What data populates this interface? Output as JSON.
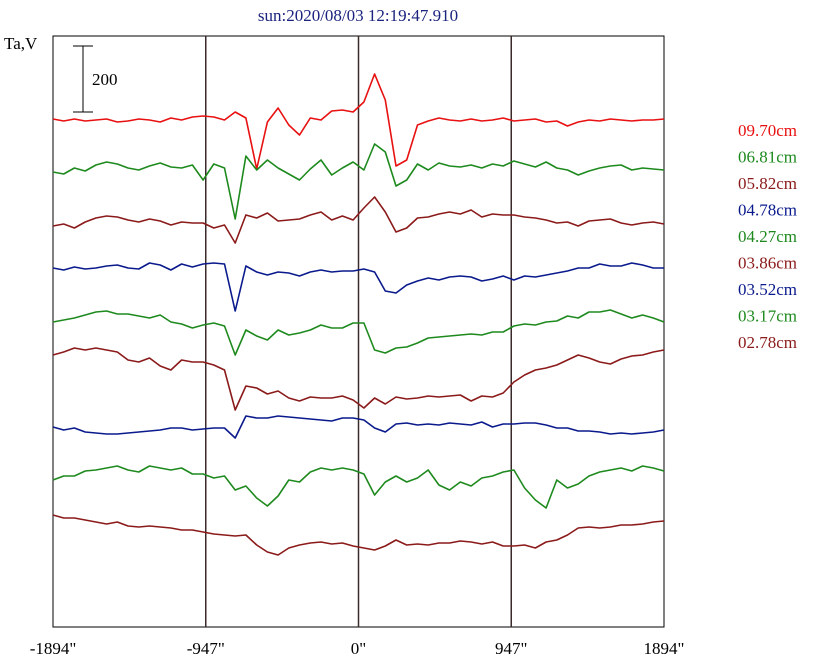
{
  "title": "sun:2020/08/03 12:19:47.910",
  "chart_data": {
    "type": "line",
    "title": "sun:2020/08/03 12:19:47.910",
    "ylabel": "Ta,V",
    "scale_bar": {
      "label": "200",
      "value": 200
    },
    "x_ticks": [
      {
        "label": "-1894\"",
        "value": -1894
      },
      {
        "label": "-947\"",
        "value": -947
      },
      {
        "label": "0\"",
        "value": 0
      },
      {
        "label": "947\"",
        "value": 947
      },
      {
        "label": "1894\"",
        "value": 1894
      }
    ],
    "xlim": [
      -1894,
      1894
    ],
    "vertical_lines_at": [
      -947,
      0,
      947
    ],
    "legend_position": "right",
    "series": [
      {
        "name": "09.70cm",
        "color": "#e81010",
        "y": [
          119,
          121,
          119,
          121,
          120,
          119,
          122,
          121,
          119,
          120,
          122,
          118,
          120,
          117,
          116,
          117,
          120,
          112,
          118,
          169,
          122,
          108,
          125,
          135,
          118,
          120,
          111,
          110,
          112,
          102,
          74,
          100,
          166,
          160,
          125,
          121,
          118,
          120,
          121,
          119,
          121,
          120,
          118,
          121,
          120,
          119,
          122,
          121,
          126,
          122,
          120,
          121,
          119,
          120,
          121,
          120,
          120,
          119
        ]
      },
      {
        "name": "06.81cm",
        "color": "#1e8a1e",
        "y": [
          172,
          174,
          168,
          171,
          165,
          162,
          164,
          168,
          170,
          166,
          163,
          167,
          168,
          165,
          180,
          164,
          168,
          219,
          156,
          170,
          160,
          168,
          174,
          180,
          169,
          160,
          175,
          168,
          162,
          170,
          144,
          152,
          186,
          180,
          164,
          170,
          163,
          166,
          167,
          165,
          168,
          164,
          166,
          161,
          164,
          167,
          162,
          168,
          170,
          175,
          171,
          168,
          166,
          165,
          170,
          168,
          169,
          170
        ]
      },
      {
        "name": "05.82cm",
        "color": "#8b1a1a",
        "y": [
          226,
          224,
          228,
          222,
          218,
          216,
          217,
          220,
          222,
          219,
          221,
          225,
          222,
          223,
          223,
          228,
          225,
          243,
          215,
          218,
          213,
          221,
          220,
          219,
          215,
          212,
          220,
          216,
          220,
          208,
          197,
          212,
          232,
          228,
          218,
          217,
          214,
          212,
          214,
          210,
          217,
          214,
          215,
          215,
          217,
          218,
          220,
          223,
          222,
          226,
          221,
          220,
          219,
          223,
          225,
          223,
          222,
          224
        ]
      },
      {
        "name": "04.78cm",
        "color": "#0a1a8c",
        "y": [
          268,
          270,
          267,
          269,
          268,
          266,
          265,
          268,
          269,
          263,
          265,
          270,
          264,
          267,
          264,
          263,
          264,
          311,
          266,
          272,
          275,
          272,
          273,
          276,
          272,
          270,
          272,
          271,
          271,
          269,
          272,
          291,
          293,
          285,
          281,
          278,
          280,
          277,
          276,
          277,
          281,
          279,
          276,
          280,
          276,
          277,
          275,
          273,
          271,
          268,
          268,
          264,
          266,
          266,
          263,
          265,
          268,
          268
        ]
      },
      {
        "name": "04.27cm",
        "color": "#1e8a1e",
        "y": [
          322,
          320,
          318,
          315,
          312,
          311,
          314,
          314,
          316,
          318,
          315,
          322,
          324,
          328,
          325,
          323,
          326,
          355,
          330,
          336,
          340,
          330,
          335,
          333,
          330,
          325,
          328,
          328,
          323,
          323,
          350,
          353,
          348,
          347,
          343,
          338,
          337,
          336,
          335,
          334,
          335,
          332,
          332,
          326,
          324,
          325,
          322,
          321,
          316,
          318,
          312,
          312,
          310,
          314,
          318,
          315,
          318,
          322
        ]
      },
      {
        "name": "03.86cm",
        "color": "#8b1a1a",
        "y": [
          355,
          352,
          348,
          350,
          348,
          350,
          352,
          360,
          362,
          358,
          366,
          370,
          360,
          362,
          362,
          365,
          370,
          410,
          386,
          388,
          394,
          391,
          398,
          401,
          397,
          398,
          398,
          396,
          400,
          408,
          398,
          404,
          397,
          399,
          398,
          396,
          397,
          396,
          395,
          401,
          396,
          397,
          393,
          382,
          375,
          370,
          368,
          365,
          360,
          355,
          358,
          362,
          364,
          359,
          356,
          355,
          352,
          350
        ]
      },
      {
        "name": "03.52cm",
        "color": "#0a1a8c",
        "y": [
          427,
          430,
          428,
          432,
          433,
          434,
          434,
          433,
          432,
          431,
          430,
          428,
          428,
          430,
          429,
          428,
          428,
          438,
          416,
          418,
          418,
          416,
          417,
          418,
          419,
          420,
          421,
          418,
          418,
          420,
          428,
          432,
          424,
          423,
          425,
          424,
          425,
          423,
          424,
          425,
          422,
          427,
          424,
          424,
          423,
          423,
          425,
          428,
          428,
          431,
          431,
          432,
          434,
          433,
          434,
          433,
          432,
          430
        ]
      },
      {
        "name": "03.17cm",
        "color": "#1e8a1e",
        "y": [
          480,
          476,
          476,
          471,
          470,
          468,
          466,
          470,
          472,
          466,
          468,
          470,
          468,
          474,
          474,
          478,
          476,
          490,
          486,
          498,
          506,
          496,
          480,
          482,
          472,
          468,
          470,
          468,
          470,
          474,
          495,
          482,
          476,
          482,
          478,
          470,
          485,
          490,
          482,
          486,
          478,
          476,
          472,
          470,
          488,
          500,
          508,
          480,
          488,
          484,
          476,
          472,
          470,
          468,
          471,
          466,
          468,
          471
        ]
      },
      {
        "name": "02.78cm",
        "color": "#8b1a1a",
        "y": [
          515,
          518,
          518,
          520,
          522,
          524,
          522,
          526,
          527,
          526,
          527,
          528,
          530,
          530,
          532,
          534,
          535,
          536,
          535,
          545,
          552,
          555,
          548,
          545,
          543,
          542,
          544,
          543,
          546,
          548,
          550,
          546,
          540,
          545,
          544,
          545,
          543,
          543,
          541,
          542,
          544,
          542,
          546,
          546,
          545,
          548,
          542,
          540,
          535,
          528,
          527,
          528,
          527,
          525,
          525,
          524,
          522,
          521
        ]
      }
    ]
  }
}
